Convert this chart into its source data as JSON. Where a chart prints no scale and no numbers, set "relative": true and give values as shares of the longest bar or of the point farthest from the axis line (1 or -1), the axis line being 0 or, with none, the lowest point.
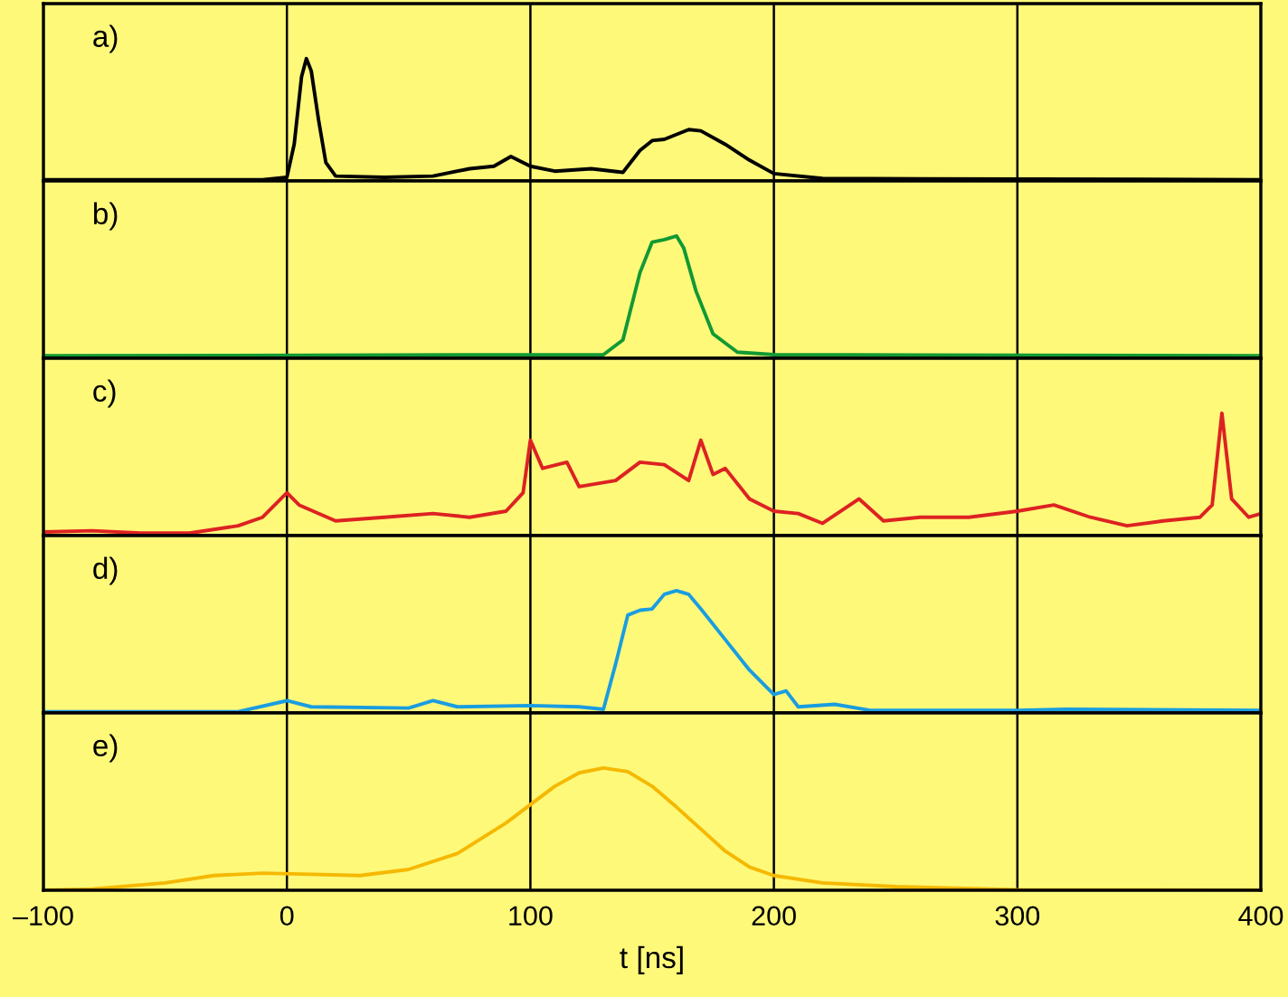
{
  "chart_data": [
    {
      "type": "line",
      "relative": true,
      "annotations": [
        "a)"
      ],
      "xlim": [
        -100,
        400
      ],
      "xticks": [
        -100,
        0,
        100,
        200,
        300,
        400
      ],
      "grid": "x",
      "tick_labels": false,
      "series": [
        {
          "color": "#000000",
          "x": [
            -100,
            -10,
            0,
            3,
            6,
            8,
            10,
            13,
            16,
            20,
            40,
            60,
            75,
            85,
            92,
            100,
            110,
            125,
            138,
            145,
            150,
            155,
            165,
            170,
            180,
            190,
            200,
            220,
            400
          ],
          "values": [
            0.01,
            0.01,
            0.03,
            0.3,
            0.85,
            1.0,
            0.9,
            0.5,
            0.15,
            0.04,
            0.03,
            0.04,
            0.1,
            0.12,
            0.2,
            0.12,
            0.08,
            0.1,
            0.07,
            0.25,
            0.33,
            0.34,
            0.42,
            0.41,
            0.3,
            0.17,
            0.06,
            0.02,
            0.01
          ]
        }
      ]
    },
    {
      "type": "line",
      "relative": true,
      "annotations": [
        "b)"
      ],
      "xlim": [
        -100,
        400
      ],
      "xticks": [
        -100,
        0,
        100,
        200,
        300,
        400
      ],
      "grid": "x",
      "tick_labels": false,
      "series": [
        {
          "color": "#119933",
          "x": [
            -100,
            130,
            138,
            145,
            150,
            155,
            160,
            163,
            168,
            175,
            185,
            200,
            400
          ],
          "values": [
            0.02,
            0.03,
            0.15,
            0.7,
            0.95,
            0.97,
            1.0,
            0.9,
            0.55,
            0.2,
            0.05,
            0.03,
            0.02
          ]
        }
      ]
    },
    {
      "type": "line",
      "relative": true,
      "annotations": [
        "c)"
      ],
      "xlim": [
        -100,
        400
      ],
      "xticks": [
        -100,
        0,
        100,
        200,
        300,
        400
      ],
      "grid": "x",
      "tick_labels": false,
      "series": [
        {
          "color": "#dd2222",
          "x": [
            -100,
            -80,
            -60,
            -40,
            -20,
            -10,
            0,
            5,
            20,
            40,
            60,
            75,
            90,
            97,
            100,
            105,
            115,
            120,
            135,
            145,
            155,
            165,
            170,
            175,
            180,
            190,
            200,
            210,
            220,
            235,
            245,
            260,
            280,
            300,
            315,
            330,
            345,
            360,
            375,
            380,
            384,
            388,
            395,
            400
          ],
          "values": [
            0.03,
            0.04,
            0.02,
            0.02,
            0.08,
            0.15,
            0.35,
            0.25,
            0.12,
            0.15,
            0.18,
            0.15,
            0.2,
            0.35,
            0.78,
            0.55,
            0.6,
            0.4,
            0.45,
            0.6,
            0.58,
            0.45,
            0.78,
            0.5,
            0.55,
            0.3,
            0.2,
            0.18,
            0.1,
            0.3,
            0.12,
            0.15,
            0.15,
            0.2,
            0.25,
            0.15,
            0.08,
            0.12,
            0.15,
            0.25,
            1.0,
            0.3,
            0.15,
            0.18
          ]
        }
      ]
    },
    {
      "type": "line",
      "relative": true,
      "annotations": [
        "d)"
      ],
      "xlim": [
        -100,
        400
      ],
      "xticks": [
        -100,
        0,
        100,
        200,
        300,
        400
      ],
      "grid": "x",
      "tick_labels": false,
      "series": [
        {
          "color": "#1a9de0",
          "x": [
            -100,
            -20,
            0,
            10,
            50,
            60,
            70,
            100,
            120,
            130,
            135,
            140,
            145,
            150,
            155,
            160,
            165,
            170,
            180,
            190,
            200,
            205,
            210,
            225,
            240,
            300,
            320,
            400
          ],
          "values": [
            0.01,
            0.01,
            0.1,
            0.05,
            0.04,
            0.1,
            0.05,
            0.06,
            0.05,
            0.03,
            0.4,
            0.8,
            0.84,
            0.85,
            0.97,
            1.0,
            0.97,
            0.85,
            0.6,
            0.35,
            0.15,
            0.18,
            0.05,
            0.07,
            0.02,
            0.02,
            0.03,
            0.02
          ]
        }
      ]
    },
    {
      "type": "line",
      "relative": true,
      "annotations": [
        "e)"
      ],
      "xlabel": "t [ns]",
      "xlim": [
        -100,
        400
      ],
      "xticks": [
        {
          "value": -100,
          "label": "–100"
        },
        0,
        100,
        200,
        300,
        400
      ],
      "grid": "x",
      "tick_labels": "x",
      "series": [
        {
          "color": "#f5b800",
          "x": [
            -100,
            -80,
            -50,
            -30,
            -10,
            10,
            30,
            50,
            70,
            90,
            100,
            110,
            120,
            130,
            140,
            150,
            160,
            170,
            180,
            190,
            200,
            220,
            250,
            300,
            400
          ],
          "values": [
            0,
            0.01,
            0.06,
            0.12,
            0.14,
            0.13,
            0.12,
            0.17,
            0.3,
            0.55,
            0.7,
            0.85,
            0.96,
            1.0,
            0.97,
            0.85,
            0.68,
            0.5,
            0.32,
            0.19,
            0.12,
            0.06,
            0.03,
            0.005,
            0
          ]
        }
      ]
    }
  ]
}
